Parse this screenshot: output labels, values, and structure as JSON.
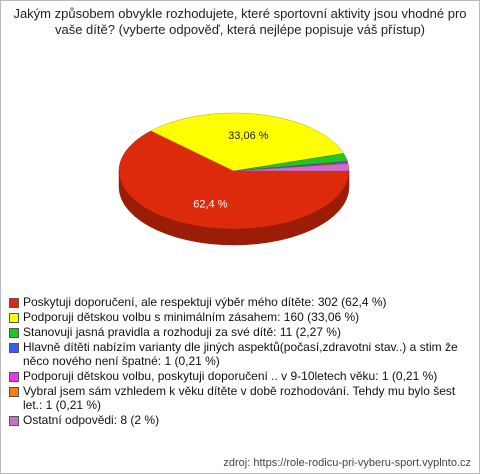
{
  "chart_data": {
    "type": "pie",
    "title": "Jakým způsobem obvykle rozhodujete, které sportovní aktivity jsou vhodné pro vaše dítě? (vyberte odpověď, která nejlépe popisuje váš přístup)",
    "categories": [
      "Poskytuji doporučení, ale respektuji výběr mého dítěte: 302 (62,4 %)",
      "Podporuji dětskou volbu s minimálním zásahem: 160 (33,06 %)",
      "Stanovuji jasná pravidla a rozhoduji za své dítě: 11 (2,27 %)",
      "Hlavně dítěti nabízím varianty dle jiných aspektů(počasí,zdravotni stav..) a stim že něco nového není špatné: 1 (0,21 %)",
      "Podporuji dětskou volbu, poskytuji doporučení .. v 9-10letech věku: 1 (0,21 %)",
      "Vybral jsem sám vzhledem k věku dítěte v době rozhodování. Tehdy mu bylo šest let.: 1 (0,21 %)",
      "Ostatní odpovědi: 8 (2 %)"
    ],
    "values": [
      62.4,
      33.06,
      2.27,
      0.21,
      0.21,
      0.21,
      2
    ],
    "value_labels": [
      "62,4 %",
      "33,06 %",
      null,
      null,
      null,
      null,
      null
    ],
    "colors": [
      "#dd2a0c",
      "#ffff00",
      "#22c422",
      "#3a5cf0",
      "#ee33ee",
      "#ff7a1a",
      "#cc6fcc"
    ],
    "source": "zdroj: https://role-rodicu-pri-vyberu-sport.vyplnto.cz"
  }
}
